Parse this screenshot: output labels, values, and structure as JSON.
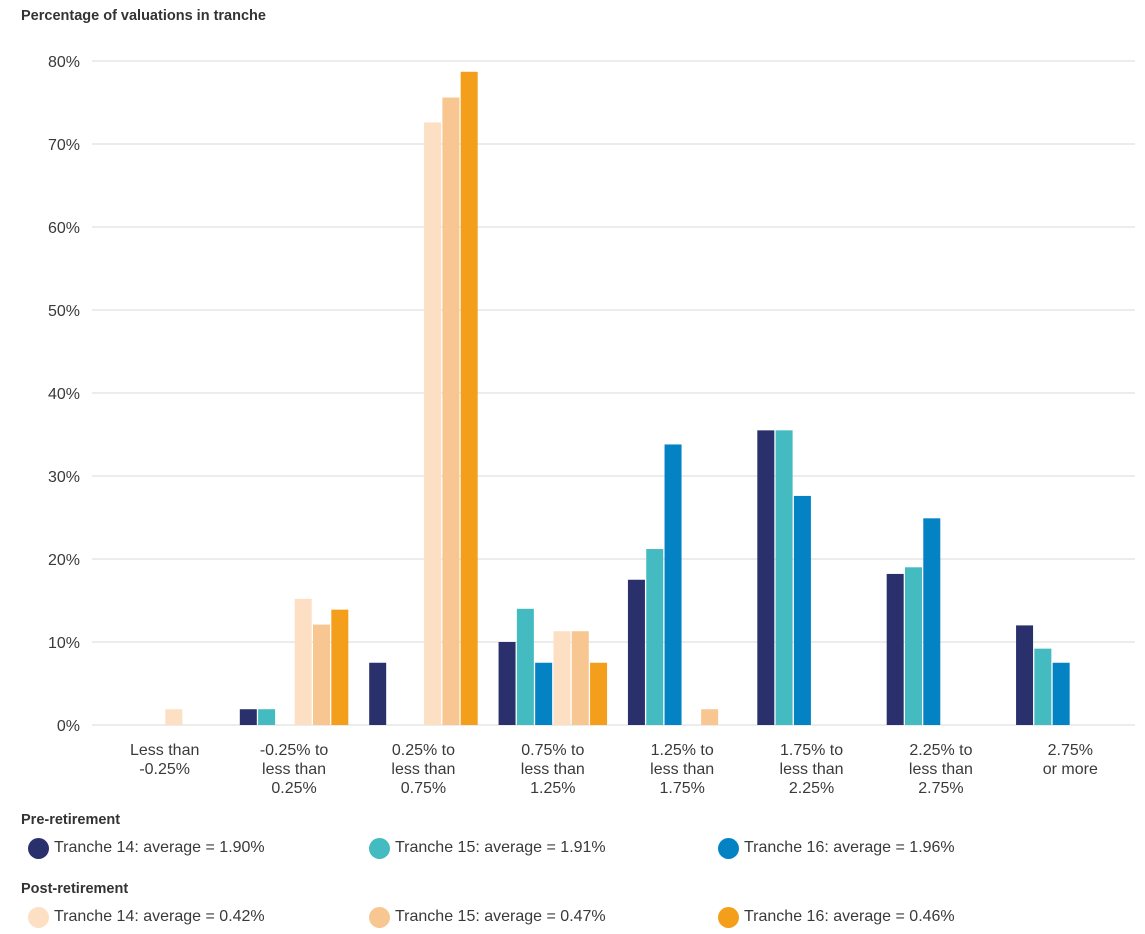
{
  "chart_data": {
    "type": "bar",
    "title": "Percentage of valuations in tranche",
    "ylim": [
      0,
      80
    ],
    "yticks": [
      "0%",
      "10%",
      "20%",
      "30%",
      "40%",
      "50%",
      "60%",
      "70%",
      "80%"
    ],
    "grid": true,
    "categories": [
      [
        "Less than",
        "-0.25%"
      ],
      [
        "-0.25% to",
        "less than",
        "0.25%"
      ],
      [
        "0.25% to",
        "less than",
        "0.75%"
      ],
      [
        "0.75% to",
        "less than",
        "1.25%"
      ],
      [
        "1.25% to",
        "less than",
        "1.75%"
      ],
      [
        "1.75% to",
        "less than",
        "2.25%"
      ],
      [
        "2.25% to",
        "less than",
        "2.75%"
      ],
      [
        "2.75%",
        "or more"
      ]
    ],
    "groups": [
      {
        "title": "Pre-retirement",
        "series": [
          {
            "name": "Tranche 14: average = 1.90%",
            "color": "#29306b",
            "values": [
              0,
              1.9,
              7.5,
              10,
              17.5,
              35.5,
              18.2,
              12
            ]
          },
          {
            "name": "Tranche 15: average = 1.91%",
            "color": "#44bac1",
            "values": [
              0,
              1.9,
              0,
              14,
              21.2,
              35.5,
              19,
              9.2
            ]
          },
          {
            "name": "Tranche 16: average = 1.96%",
            "color": "#0383c3",
            "values": [
              0,
              0,
              0,
              7.5,
              33.8,
              27.6,
              24.9,
              7.5
            ]
          }
        ]
      },
      {
        "title": "Post-retirement",
        "series": [
          {
            "name": "Tranche 14: average = 0.42%",
            "color": "#fde0c4",
            "values": [
              1.9,
              15.2,
              72.6,
              11.3,
              0,
              0,
              0,
              0
            ]
          },
          {
            "name": "Tranche 15: average = 0.47%",
            "color": "#f8c690",
            "values": [
              0,
              12.1,
              75.6,
              11.3,
              1.9,
              0,
              0,
              0
            ]
          },
          {
            "name": "Tranche 16: average = 0.46%",
            "color": "#f49f1b",
            "values": [
              0,
              13.9,
              78.7,
              7.5,
              0,
              0,
              0,
              0
            ]
          }
        ]
      }
    ]
  }
}
